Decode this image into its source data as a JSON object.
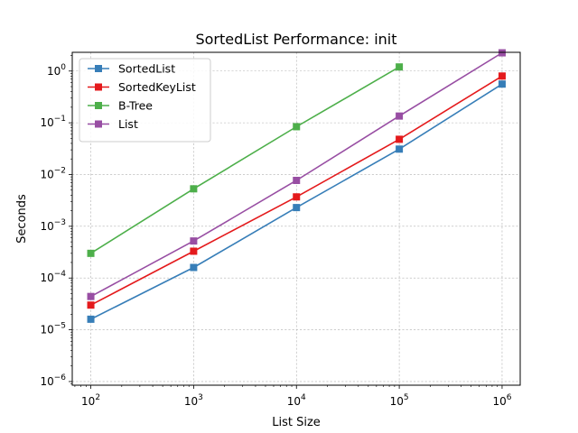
{
  "chart_data": {
    "type": "line",
    "title": "SortedList Performance: init",
    "xlabel": "List Size",
    "ylabel": "Seconds",
    "xscale": "log",
    "yscale": "log",
    "x": [
      100,
      1000,
      10000,
      100000,
      1000000
    ],
    "x_ticks": [
      {
        "value": 100,
        "base": "10",
        "exp": "2"
      },
      {
        "value": 1000,
        "base": "10",
        "exp": "3"
      },
      {
        "value": 10000,
        "base": "10",
        "exp": "4"
      },
      {
        "value": 100000,
        "base": "10",
        "exp": "5"
      },
      {
        "value": 1000000,
        "base": "10",
        "exp": "6"
      }
    ],
    "y_ticks": [
      {
        "value": 1e-06,
        "base": "10",
        "exp": "−6"
      },
      {
        "value": 1e-05,
        "base": "10",
        "exp": "−5"
      },
      {
        "value": 0.0001,
        "base": "10",
        "exp": "−4"
      },
      {
        "value": 0.001,
        "base": "10",
        "exp": "−3"
      },
      {
        "value": 0.01,
        "base": "10",
        "exp": "−2"
      },
      {
        "value": 0.1,
        "base": "10",
        "exp": "−1"
      },
      {
        "value": 1,
        "base": "10",
        "exp": "0"
      }
    ],
    "xlim": [
      66,
      1500000
    ],
    "ylim": [
      8.5e-07,
      2.3
    ],
    "grid": true,
    "legend_position": "top-left",
    "series": [
      {
        "name": "SortedList",
        "color": "#377eb8",
        "values": [
          1.6e-05,
          0.00016,
          0.0023,
          0.031,
          0.56
        ]
      },
      {
        "name": "SortedKeyList",
        "color": "#e41a1c",
        "values": [
          3e-05,
          0.00033,
          0.0037,
          0.048,
          0.8
        ]
      },
      {
        "name": "B-Tree",
        "color": "#4daf4a",
        "values": [
          0.0003,
          0.0053,
          0.084,
          1.2,
          null
        ]
      },
      {
        "name": "List",
        "color": "#984ea3",
        "values": [
          4.4e-05,
          0.00052,
          0.0077,
          0.135,
          2.25
        ]
      }
    ]
  }
}
